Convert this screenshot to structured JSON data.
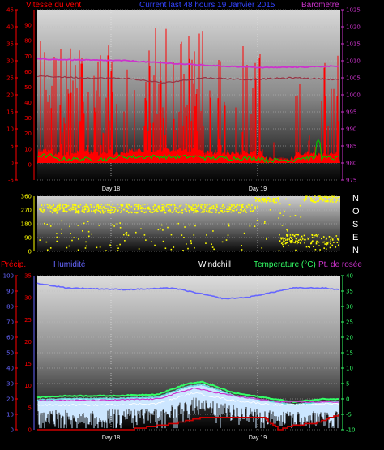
{
  "header": {
    "wind_label": "Vitesse du vent",
    "title": "Current last 48 hours 19 Janvier 2015",
    "baro_label": "Barometre"
  },
  "lower_header": {
    "precip_label": "Précip.",
    "humidity_label": "Humidité",
    "windchill_label": "Windchill",
    "temp_label": "Temperature (°C)",
    "dew_label": "Pt. de rosée"
  },
  "compass": [
    "N",
    "O",
    "S",
    "E",
    "N"
  ],
  "colors": {
    "wind": "#ff0000",
    "gust_avg": "#00c000",
    "barometer": "#cc33cc",
    "baro_trend": "#993344",
    "direction": "#ffff00",
    "humidity": "#6666ff",
    "temperature": "#33ff66",
    "dew_fill": "#cce6ff",
    "windchill": "#ffffff",
    "precip": "#cc0000",
    "title": "#3344ff"
  },
  "chart_data": [
    {
      "type": "line",
      "name": "wind-barometer",
      "x_labels": [
        "Day 18",
        "Day 19"
      ],
      "y_left": {
        "label": "Vitesse du vent",
        "ticks": [
          -5,
          0,
          5,
          10,
          15,
          20,
          25,
          30,
          35,
          40,
          45
        ],
        "ylim": [
          -5,
          45
        ]
      },
      "y_inner": {
        "ticks": [
          0,
          10,
          20,
          30,
          40,
          50,
          60,
          70,
          80,
          90
        ],
        "ylim": [
          -10,
          100
        ]
      },
      "y_right": {
        "label": "Barometre",
        "ticks": [
          975,
          980,
          985,
          990,
          995,
          1000,
          1005,
          1010,
          1015,
          1020,
          1025
        ],
        "ylim": [
          975,
          1025
        ]
      },
      "barometer_keypoints": [
        [
          0,
          1010.5
        ],
        [
          0.1,
          1010.3
        ],
        [
          0.3,
          1010
        ],
        [
          0.45,
          1009.2
        ],
        [
          0.6,
          1008.5
        ],
        [
          0.75,
          1008
        ],
        [
          0.9,
          1008.2
        ],
        [
          1,
          1008.5
        ]
      ],
      "baro_trend_keypoints": [
        [
          0,
          1005.5
        ],
        [
          0.15,
          1005
        ],
        [
          0.3,
          1004.8
        ],
        [
          0.42,
          1003.5
        ],
        [
          0.55,
          1005
        ],
        [
          0.7,
          1004.5
        ],
        [
          0.85,
          1005
        ],
        [
          1,
          1004.5
        ]
      ],
      "grid": true
    },
    {
      "type": "scatter",
      "name": "wind-direction",
      "y_ticks": [
        0,
        90,
        180,
        270,
        360
      ],
      "ylim": [
        0,
        360
      ],
      "grid": true
    },
    {
      "type": "line",
      "name": "temperature-humidity",
      "x_labels": [
        "Day 18",
        "Day 19"
      ],
      "y_outer": {
        "label": "Précip.",
        "ticks": [
          0,
          10,
          20,
          30,
          40,
          50,
          60,
          70,
          80,
          90,
          100
        ],
        "ylim": [
          0,
          100
        ]
      },
      "y_inner": {
        "label": "Humidité",
        "ticks": [
          0,
          5,
          10,
          15,
          20,
          25,
          30,
          35
        ],
        "ylim": [
          0,
          35
        ]
      },
      "y_right": {
        "label": "Temperature (°C)",
        "ticks": [
          -10,
          -5,
          0,
          5,
          10,
          15,
          20,
          25,
          30,
          35,
          40
        ],
        "ylim": [
          -10,
          40
        ]
      },
      "humidity_keypoints": [
        [
          0,
          95
        ],
        [
          0.1,
          92
        ],
        [
          0.3,
          91
        ],
        [
          0.45,
          92
        ],
        [
          0.5,
          90
        ],
        [
          0.55,
          88
        ],
        [
          0.62,
          85
        ],
        [
          0.7,
          86
        ],
        [
          0.75,
          88
        ],
        [
          0.85,
          92
        ],
        [
          0.95,
          92
        ],
        [
          1,
          91
        ]
      ],
      "temperature_keypoints": [
        [
          0,
          0.5
        ],
        [
          0.1,
          1
        ],
        [
          0.25,
          1
        ],
        [
          0.4,
          1.5
        ],
        [
          0.5,
          5
        ],
        [
          0.55,
          5.5
        ],
        [
          0.65,
          2
        ],
        [
          0.75,
          0.5
        ],
        [
          0.85,
          -1
        ],
        [
          0.95,
          0
        ],
        [
          1,
          0
        ]
      ],
      "dewpoint_keypoints": [
        [
          0,
          -0.5
        ],
        [
          0.2,
          -0.5
        ],
        [
          0.4,
          0
        ],
        [
          0.52,
          3.5
        ],
        [
          0.65,
          1
        ],
        [
          0.8,
          -1
        ],
        [
          1,
          -1
        ]
      ],
      "windchill_keypoints": [
        [
          0,
          -2
        ],
        [
          0.2,
          -2
        ],
        [
          0.4,
          -1.5
        ],
        [
          0.52,
          2
        ],
        [
          0.65,
          -0.5
        ],
        [
          0.8,
          -2
        ],
        [
          1,
          -1.5
        ]
      ],
      "precip_keypoints": [
        [
          0,
          0
        ],
        [
          0.3,
          0
        ],
        [
          0.45,
          4
        ],
        [
          0.55,
          8
        ],
        [
          0.75,
          8
        ],
        [
          0.8,
          0
        ],
        [
          0.85,
          3
        ],
        [
          0.92,
          4
        ],
        [
          1,
          10
        ]
      ],
      "grid": true
    }
  ]
}
